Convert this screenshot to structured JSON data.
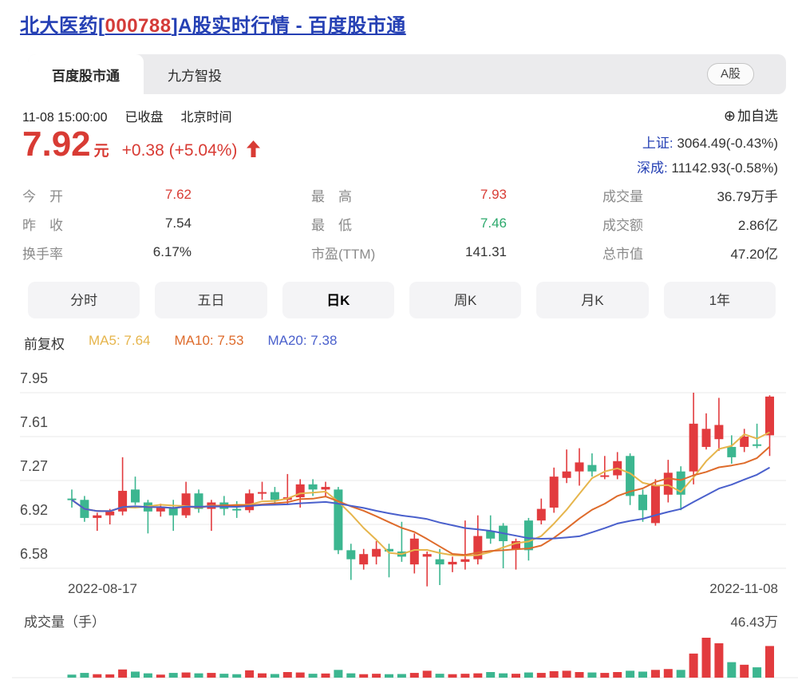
{
  "page": {
    "title_prefix": "北大医药[",
    "title_code": "000788",
    "title_suffix": "]A股实时行情 - 百度股市通"
  },
  "tabs": {
    "primary": "百度股市通",
    "secondary": "九方智投",
    "market_badge": "A股"
  },
  "status": {
    "datetime": "11-08 15:00:00",
    "market_state": "已收盘",
    "timezone": "北京时间",
    "add_watch_icon": "⊕",
    "add_watch": "加自选"
  },
  "quote": {
    "price": "7.92",
    "unit": "元",
    "change": "+0.38 (+5.04%)",
    "up_color": "#d83b34"
  },
  "indices": [
    {
      "label": "上证:",
      "value": "3064.49(-0.43%)"
    },
    {
      "label": "深成:",
      "value": "11142.93(-0.58%)"
    }
  ],
  "stats": {
    "items": [
      {
        "label": "今　开",
        "value": "7.62",
        "color": "#d83b34"
      },
      {
        "label": "最　高",
        "value": "7.93",
        "color": "#d83b34"
      },
      {
        "label": "成交量",
        "value": "36.79万手",
        "color": "#333333"
      },
      {
        "label": "昨　收",
        "value": "7.54",
        "color": "#333333"
      },
      {
        "label": "最　低",
        "value": "7.46",
        "color": "#2ca96c"
      },
      {
        "label": "成交额",
        "value": "2.86亿",
        "color": "#333333"
      },
      {
        "label": "换手率",
        "value": "6.17%",
        "color": "#333333"
      },
      {
        "label": "市盈(TTM)",
        "value": "141.31",
        "color": "#333333"
      },
      {
        "label": "总市值",
        "value": "47.20亿",
        "color": "#333333"
      }
    ]
  },
  "period_tabs": [
    {
      "label": "分时"
    },
    {
      "label": "五日"
    },
    {
      "label": "日K",
      "active": true
    },
    {
      "label": "周K"
    },
    {
      "label": "月K"
    },
    {
      "label": "1年"
    }
  ],
  "legend": {
    "adjust": "前复权",
    "ma5": "MA5: 7.64",
    "ma10": "MA10: 7.53",
    "ma20": "MA20: 7.38"
  },
  "chart_data": {
    "type": "candlestick",
    "title": "北大医药 000788 日K",
    "y_ticks": [
      7.95,
      7.61,
      7.27,
      6.92,
      6.58
    ],
    "x_labels": [
      "2022-08-17",
      "2022-11-08"
    ],
    "grid": true,
    "ma_periods": [
      5,
      10,
      20
    ],
    "candles_ohlc": [
      [
        7.13,
        7.2,
        7.06,
        7.12
      ],
      [
        7.12,
        7.15,
        6.95,
        6.98
      ],
      [
        6.98,
        7.02,
        6.88,
        7.0
      ],
      [
        7.0,
        7.05,
        6.93,
        7.03
      ],
      [
        7.03,
        7.45,
        7.0,
        7.19
      ],
      [
        7.2,
        7.3,
        7.08,
        7.1
      ],
      [
        7.1,
        7.12,
        6.86,
        7.03
      ],
      [
        7.03,
        7.09,
        6.99,
        7.06
      ],
      [
        7.06,
        7.12,
        6.88,
        7.0
      ],
      [
        7.0,
        7.26,
        6.98,
        7.17
      ],
      [
        7.17,
        7.2,
        7.02,
        7.05
      ],
      [
        7.05,
        7.12,
        6.88,
        7.1
      ],
      [
        7.1,
        7.15,
        7.0,
        7.05
      ],
      [
        7.05,
        7.11,
        6.98,
        7.04
      ],
      [
        7.04,
        7.2,
        7.02,
        7.17
      ],
      [
        7.17,
        7.26,
        7.12,
        7.18
      ],
      [
        7.18,
        7.22,
        7.08,
        7.12
      ],
      [
        7.12,
        7.32,
        7.08,
        7.14
      ],
      [
        7.14,
        7.28,
        7.06,
        7.24
      ],
      [
        7.24,
        7.28,
        7.15,
        7.2
      ],
      [
        7.2,
        7.26,
        7.14,
        7.22
      ],
      [
        7.2,
        7.22,
        6.7,
        6.73
      ],
      [
        6.73,
        6.78,
        6.5,
        6.66
      ],
      [
        6.62,
        6.74,
        6.58,
        6.7
      ],
      [
        6.68,
        6.8,
        6.62,
        6.74
      ],
      [
        6.74,
        6.78,
        6.52,
        6.72
      ],
      [
        6.72,
        6.95,
        6.64,
        6.68
      ],
      [
        6.62,
        6.86,
        6.55,
        6.82
      ],
      [
        6.68,
        6.72,
        6.45,
        6.7
      ],
      [
        6.66,
        6.74,
        6.46,
        6.62
      ],
      [
        6.62,
        6.68,
        6.56,
        6.64
      ],
      [
        6.64,
        6.96,
        6.58,
        6.66
      ],
      [
        6.66,
        7.0,
        6.62,
        6.84
      ],
      [
        6.88,
        7.0,
        6.78,
        6.82
      ],
      [
        6.92,
        6.94,
        6.59,
        6.8
      ],
      [
        6.74,
        6.82,
        6.58,
        6.8
      ],
      [
        6.96,
        6.98,
        6.65,
        6.73
      ],
      [
        6.96,
        7.13,
        6.93,
        7.05
      ],
      [
        7.06,
        7.37,
        7.02,
        7.3
      ],
      [
        7.29,
        7.51,
        7.25,
        7.34
      ],
      [
        7.34,
        7.52,
        7.23,
        7.41
      ],
      [
        7.39,
        7.48,
        7.3,
        7.34
      ],
      [
        7.31,
        7.46,
        7.28,
        7.31
      ],
      [
        7.31,
        7.49,
        7.28,
        7.42
      ],
      [
        7.46,
        7.48,
        7.08,
        7.15
      ],
      [
        7.16,
        7.2,
        6.95,
        7.04
      ],
      [
        6.94,
        7.28,
        6.92,
        7.23
      ],
      [
        7.16,
        7.43,
        7.1,
        7.33
      ],
      [
        7.34,
        7.38,
        7.04,
        7.16
      ],
      [
        7.34,
        7.95,
        7.24,
        7.71
      ],
      [
        7.53,
        7.79,
        7.51,
        7.67
      ],
      [
        7.59,
        7.91,
        7.5,
        7.7
      ],
      [
        7.53,
        7.62,
        7.4,
        7.45
      ],
      [
        7.53,
        7.67,
        7.49,
        7.61
      ],
      [
        7.55,
        7.71,
        7.52,
        7.54
      ],
      [
        7.62,
        7.93,
        7.46,
        7.92
      ]
    ],
    "volume_title": "成交量（手）",
    "volume_max_label": "46.43万",
    "volume_scale_max": 46.43,
    "volume_wan": [
      3.5,
      5.5,
      4.0,
      3.8,
      9.5,
      7.0,
      5.0,
      3.5,
      5.5,
      6.0,
      5.0,
      5.5,
      4.5,
      4.0,
      8.5,
      5.0,
      4.2,
      6.5,
      6.0,
      4.5,
      4.8,
      9.0,
      5.0,
      4.0,
      4.5,
      4.0,
      4.2,
      5.5,
      8.0,
      4.5,
      4.0,
      4.5,
      5.0,
      6.5,
      5.0,
      4.5,
      6.0,
      5.5,
      7.5,
      8.0,
      6.5,
      6.0,
      5.5,
      6.5,
      8.0,
      7.0,
      9.0,
      10.0,
      9.0,
      28.0,
      46.43,
      40.0,
      18.0,
      15.0,
      12.0,
      36.79
    ],
    "colors": {
      "up": "#e23b3e",
      "down": "#3cb690",
      "ma5": "#e6b54c",
      "ma10": "#de6b2b",
      "ma20": "#4a60cc",
      "grid": "#e9e9e9",
      "axis_text": "#4a4a4a"
    }
  }
}
